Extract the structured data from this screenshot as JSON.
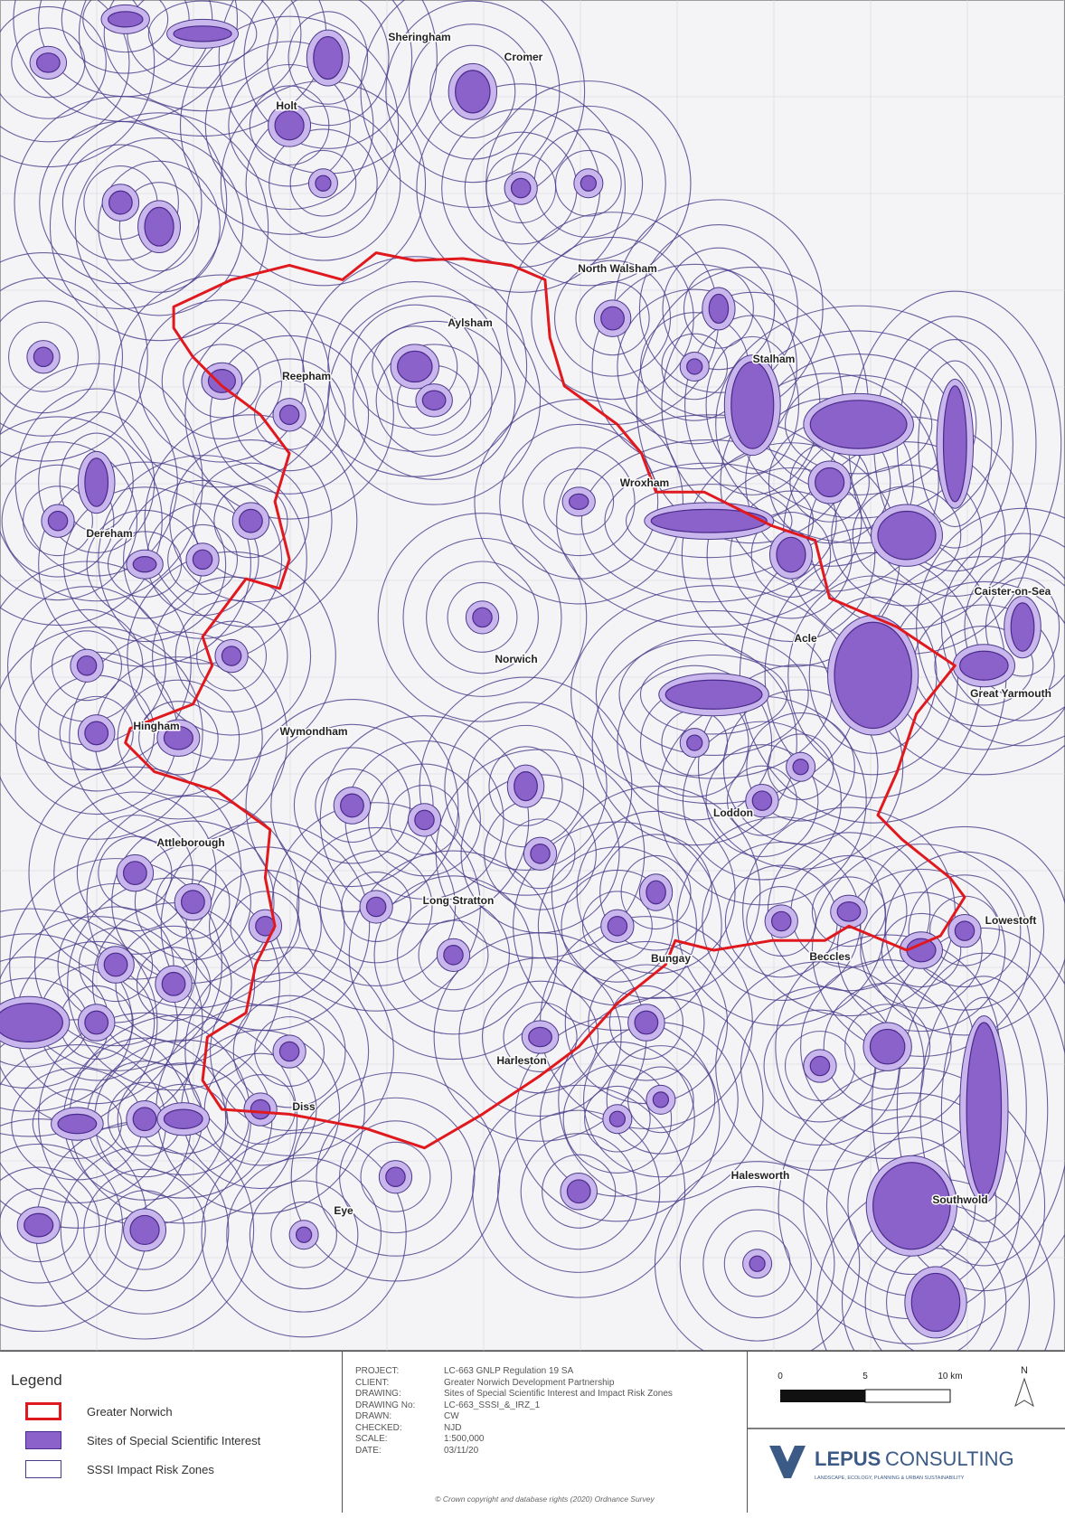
{
  "map": {
    "places": [
      "Sheringham",
      "Cromer",
      "Holt",
      "North Walsham",
      "Aylsham",
      "Reepham",
      "Stalham",
      "Wroxham",
      "Dereham",
      "Caister-on-Sea",
      "Acle",
      "Norwich",
      "Great Yarmouth",
      "Hingham",
      "Wymondham",
      "Loddon",
      "Attleborough",
      "Long Stratton",
      "Lowestoft",
      "Bungay",
      "Beccles",
      "Harleston",
      "Diss",
      "Halesworth",
      "Southwold",
      "Eye"
    ]
  },
  "legend": {
    "title": "Legend",
    "items": [
      "Greater Norwich",
      "Sites of Special Scientific Interest",
      "SSSI Impact Risk Zones"
    ]
  },
  "info": {
    "rows": [
      [
        "PROJECT:",
        "LC-663 GNLP Regulation 19 SA"
      ],
      [
        "CLIENT:",
        "Greater Norwich Development Partnership"
      ],
      [
        "DRAWING:",
        "Sites of Special Scientific Interest and Impact Risk Zones"
      ],
      [
        "DRAWING No:",
        "LC-663_SSSI_&_IRZ_1"
      ],
      [
        "DRAWN:",
        "CW"
      ],
      [
        "CHECKED:",
        "NJD"
      ],
      [
        "SCALE:",
        "1:500,000"
      ],
      [
        "DATE:",
        "03/11/20"
      ]
    ],
    "copyright": "© Crown copyright and database rights (2020) Ordnance Survey"
  },
  "scale_bar": {
    "labels": [
      "0",
      "5",
      "10 km"
    ],
    "north": "N"
  },
  "logo": {
    "name_bold": "LEPUS",
    "name_light": "CONSULTING",
    "tagline": "LANDSCAPE, ECOLOGY, PLANNING & URBAN SUSTAINABILITY"
  }
}
